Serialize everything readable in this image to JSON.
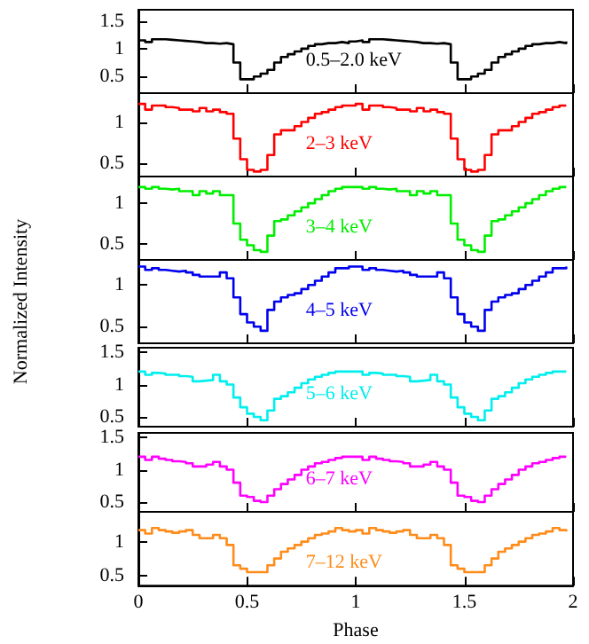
{
  "chart_data": [
    {
      "type": "step",
      "ylim": [
        0.2,
        1.7
      ],
      "yticks": [
        0.5,
        1,
        1.5
      ],
      "xlim": [
        0,
        2
      ],
      "xticks": [
        0,
        0.5,
        1,
        1.5,
        2
      ],
      "tick_labels": "y",
      "x": [
        0,
        0.03125,
        0.0625,
        0.09375,
        0.125,
        0.15625,
        0.1875,
        0.21875,
        0.25,
        0.28125,
        0.3125,
        0.34375,
        0.375,
        0.40625,
        0.4375,
        0.46875,
        0.5,
        0.53125,
        0.5625,
        0.59375,
        0.625,
        0.65625,
        0.6875,
        0.71875,
        0.75,
        0.78125,
        0.8125,
        0.84375,
        0.875,
        0.90625,
        0.9375,
        0.96875,
        1,
        1.03125,
        1.0625,
        1.09375,
        1.125,
        1.15625,
        1.1875,
        1.21875,
        1.25,
        1.28125,
        1.3125,
        1.34375,
        1.375,
        1.40625,
        1.4375,
        1.46875,
        1.5,
        1.53125,
        1.5625,
        1.59375,
        1.625,
        1.65625,
        1.6875,
        1.71875,
        1.75,
        1.78125,
        1.8125,
        1.84375,
        1.875,
        1.90625,
        1.9375,
        1.96875
      ],
      "series": [
        {
          "name": "0.5–2.0 keV",
          "color": "#000000",
          "values": [
            1.15,
            1.12,
            1.17,
            1.17,
            1.16,
            1.15,
            1.14,
            1.13,
            1.12,
            1.1,
            1.1,
            1.09,
            1.1,
            1.08,
            0.75,
            0.45,
            0.45,
            0.5,
            0.55,
            0.62,
            0.75,
            0.85,
            0.9,
            0.95,
            1.0,
            1.05,
            1.08,
            1.1,
            1.1,
            1.12,
            1.1,
            1.13,
            1.15,
            1.12,
            1.17,
            1.17,
            1.16,
            1.15,
            1.14,
            1.13,
            1.12,
            1.1,
            1.1,
            1.09,
            1.1,
            1.08,
            0.75,
            0.45,
            0.45,
            0.5,
            0.55,
            0.62,
            0.75,
            0.85,
            0.9,
            0.95,
            1.0,
            1.05,
            1.08,
            1.1,
            1.1,
            1.12,
            1.1,
            1.13
          ]
        }
      ]
    },
    {
      "type": "step",
      "ylim": [
        0.34,
        1.35
      ],
      "yticks": [
        0.5,
        1
      ],
      "xlim": [
        0,
        2
      ],
      "xticks": [
        0,
        0.5,
        1,
        1.5,
        2
      ],
      "tick_labels": "y",
      "x": [
        0,
        0.03125,
        0.0625,
        0.09375,
        0.125,
        0.15625,
        0.1875,
        0.21875,
        0.25,
        0.28125,
        0.3125,
        0.34375,
        0.375,
        0.40625,
        0.4375,
        0.46875,
        0.5,
        0.53125,
        0.5625,
        0.59375,
        0.625,
        0.65625,
        0.6875,
        0.71875,
        0.75,
        0.78125,
        0.8125,
        0.84375,
        0.875,
        0.90625,
        0.9375,
        0.96875,
        1,
        1.03125,
        1.0625,
        1.09375,
        1.125,
        1.15625,
        1.1875,
        1.21875,
        1.25,
        1.28125,
        1.3125,
        1.34375,
        1.375,
        1.40625,
        1.4375,
        1.46875,
        1.5,
        1.53125,
        1.5625,
        1.59375,
        1.625,
        1.65625,
        1.6875,
        1.71875,
        1.75,
        1.78125,
        1.8125,
        1.84375,
        1.875,
        1.90625,
        1.9375,
        1.96875
      ],
      "series": [
        {
          "name": "2–3 keV",
          "color": "#ff0000",
          "values": [
            1.22,
            1.15,
            1.2,
            1.2,
            1.18,
            1.17,
            1.15,
            1.15,
            1.13,
            1.17,
            1.13,
            1.15,
            1.12,
            1.1,
            0.8,
            0.55,
            0.42,
            0.4,
            0.42,
            0.6,
            0.85,
            0.9,
            0.9,
            0.95,
            1.0,
            1.05,
            1.1,
            1.12,
            1.15,
            1.18,
            1.2,
            1.2,
            1.22,
            1.15,
            1.2,
            1.2,
            1.18,
            1.17,
            1.15,
            1.15,
            1.13,
            1.17,
            1.13,
            1.15,
            1.12,
            1.1,
            0.8,
            0.55,
            0.42,
            0.4,
            0.42,
            0.6,
            0.85,
            0.9,
            0.9,
            0.95,
            1.0,
            1.05,
            1.1,
            1.12,
            1.15,
            1.18,
            1.2,
            1.2
          ]
        }
      ]
    },
    {
      "type": "step",
      "ylim": [
        0.3,
        1.33
      ],
      "yticks": [
        0.5,
        1
      ],
      "xlim": [
        0,
        2
      ],
      "xticks": [
        0,
        0.5,
        1,
        1.5,
        2
      ],
      "tick_labels": "y",
      "x": [
        0,
        0.03125,
        0.0625,
        0.09375,
        0.125,
        0.15625,
        0.1875,
        0.21875,
        0.25,
        0.28125,
        0.3125,
        0.34375,
        0.375,
        0.40625,
        0.4375,
        0.46875,
        0.5,
        0.53125,
        0.5625,
        0.59375,
        0.625,
        0.65625,
        0.6875,
        0.71875,
        0.75,
        0.78125,
        0.8125,
        0.84375,
        0.875,
        0.90625,
        0.9375,
        0.96875,
        1,
        1.03125,
        1.0625,
        1.09375,
        1.125,
        1.15625,
        1.1875,
        1.21875,
        1.25,
        1.28125,
        1.3125,
        1.34375,
        1.375,
        1.40625,
        1.4375,
        1.46875,
        1.5,
        1.53125,
        1.5625,
        1.59375,
        1.625,
        1.65625,
        1.6875,
        1.71875,
        1.75,
        1.78125,
        1.8125,
        1.84375,
        1.875,
        1.90625,
        1.9375,
        1.96875
      ],
      "series": [
        {
          "name": "3–4 keV",
          "color": "#00ee00",
          "values": [
            1.2,
            1.18,
            1.2,
            1.18,
            1.17,
            1.18,
            1.15,
            1.15,
            1.1,
            1.15,
            1.12,
            1.15,
            1.1,
            1.1,
            0.75,
            0.55,
            0.48,
            0.42,
            0.4,
            0.6,
            0.78,
            0.8,
            0.85,
            0.9,
            0.95,
            1.0,
            1.05,
            1.1,
            1.15,
            1.18,
            1.2,
            1.2,
            1.2,
            1.18,
            1.2,
            1.18,
            1.17,
            1.18,
            1.15,
            1.15,
            1.1,
            1.15,
            1.12,
            1.15,
            1.1,
            1.1,
            0.75,
            0.55,
            0.48,
            0.42,
            0.4,
            0.6,
            0.78,
            0.8,
            0.85,
            0.9,
            0.95,
            1.0,
            1.05,
            1.1,
            1.15,
            1.18,
            1.2,
            1.2
          ]
        }
      ]
    },
    {
      "type": "step",
      "ylim": [
        0.3,
        1.3
      ],
      "yticks": [
        0.5,
        1
      ],
      "xlim": [
        0,
        2
      ],
      "xticks": [
        0,
        0.5,
        1,
        1.5,
        2
      ],
      "tick_labels": "y",
      "ylabel": "Normalized Intensity",
      "x": [
        0,
        0.03125,
        0.0625,
        0.09375,
        0.125,
        0.15625,
        0.1875,
        0.21875,
        0.25,
        0.28125,
        0.3125,
        0.34375,
        0.375,
        0.40625,
        0.4375,
        0.46875,
        0.5,
        0.53125,
        0.5625,
        0.59375,
        0.625,
        0.65625,
        0.6875,
        0.71875,
        0.75,
        0.78125,
        0.8125,
        0.84375,
        0.875,
        0.90625,
        0.9375,
        0.96875,
        1,
        1.03125,
        1.0625,
        1.09375,
        1.125,
        1.15625,
        1.1875,
        1.21875,
        1.25,
        1.28125,
        1.3125,
        1.34375,
        1.375,
        1.40625,
        1.4375,
        1.46875,
        1.5,
        1.53125,
        1.5625,
        1.59375,
        1.625,
        1.65625,
        1.6875,
        1.71875,
        1.75,
        1.78125,
        1.8125,
        1.84375,
        1.875,
        1.90625,
        1.9375,
        1.96875
      ],
      "series": [
        {
          "name": "4–5 keV",
          "color": "#0000ee",
          "values": [
            1.22,
            1.18,
            1.2,
            1.18,
            1.17,
            1.16,
            1.17,
            1.15,
            1.12,
            1.1,
            1.1,
            1.1,
            1.15,
            1.08,
            0.85,
            0.65,
            0.55,
            0.5,
            0.45,
            0.7,
            0.8,
            0.85,
            0.88,
            0.9,
            0.95,
            1.0,
            1.05,
            1.1,
            1.15,
            1.2,
            1.2,
            1.22,
            1.22,
            1.18,
            1.2,
            1.18,
            1.17,
            1.16,
            1.17,
            1.15,
            1.12,
            1.1,
            1.1,
            1.1,
            1.15,
            1.08,
            0.85,
            0.65,
            0.55,
            0.5,
            0.45,
            0.7,
            0.8,
            0.85,
            0.88,
            0.9,
            0.95,
            1.0,
            1.05,
            1.1,
            1.15,
            1.2,
            1.2,
            1.22
          ]
        }
      ]
    },
    {
      "type": "step",
      "ylim": [
        0.35,
        1.57
      ],
      "yticks": [
        0.5,
        1,
        1.5
      ],
      "xlim": [
        0,
        2
      ],
      "xticks": [
        0,
        0.5,
        1,
        1.5,
        2
      ],
      "tick_labels": "y",
      "x": [
        0,
        0.03125,
        0.0625,
        0.09375,
        0.125,
        0.15625,
        0.1875,
        0.21875,
        0.25,
        0.28125,
        0.3125,
        0.34375,
        0.375,
        0.40625,
        0.4375,
        0.46875,
        0.5,
        0.53125,
        0.5625,
        0.59375,
        0.625,
        0.65625,
        0.6875,
        0.71875,
        0.75,
        0.78125,
        0.8125,
        0.84375,
        0.875,
        0.90625,
        0.9375,
        0.96875,
        1,
        1.03125,
        1.0625,
        1.09375,
        1.125,
        1.15625,
        1.1875,
        1.21875,
        1.25,
        1.28125,
        1.3125,
        1.34375,
        1.375,
        1.40625,
        1.4375,
        1.46875,
        1.5,
        1.53125,
        1.5625,
        1.59375,
        1.625,
        1.65625,
        1.6875,
        1.71875,
        1.75,
        1.78125,
        1.8125,
        1.84375,
        1.875,
        1.90625,
        1.9375,
        1.96875
      ],
      "series": [
        {
          "name": "5–6 keV",
          "color": "#00eeee",
          "values": [
            1.2,
            1.15,
            1.18,
            1.17,
            1.15,
            1.15,
            1.13,
            1.12,
            1.05,
            1.06,
            1.07,
            1.15,
            1.05,
            1.0,
            0.8,
            0.65,
            0.55,
            0.5,
            0.45,
            0.6,
            0.78,
            0.82,
            0.88,
            0.95,
            1.02,
            1.08,
            1.12,
            1.15,
            1.18,
            1.2,
            1.2,
            1.2,
            1.2,
            1.15,
            1.18,
            1.17,
            1.15,
            1.15,
            1.13,
            1.12,
            1.05,
            1.06,
            1.07,
            1.15,
            1.05,
            1.0,
            0.8,
            0.65,
            0.55,
            0.5,
            0.45,
            0.6,
            0.78,
            0.82,
            0.88,
            0.95,
            1.02,
            1.08,
            1.12,
            1.15,
            1.18,
            1.2,
            1.2,
            1.2
          ]
        }
      ]
    },
    {
      "type": "step",
      "ylim": [
        0.35,
        1.57
      ],
      "yticks": [
        0.5,
        1,
        1.5
      ],
      "xlim": [
        0,
        2
      ],
      "xticks": [
        0,
        0.5,
        1,
        1.5,
        2
      ],
      "tick_labels": "y",
      "x": [
        0,
        0.03125,
        0.0625,
        0.09375,
        0.125,
        0.15625,
        0.1875,
        0.21875,
        0.25,
        0.28125,
        0.3125,
        0.34375,
        0.375,
        0.40625,
        0.4375,
        0.46875,
        0.5,
        0.53125,
        0.5625,
        0.59375,
        0.625,
        0.65625,
        0.6875,
        0.71875,
        0.75,
        0.78125,
        0.8125,
        0.84375,
        0.875,
        0.90625,
        0.9375,
        0.96875,
        1,
        1.03125,
        1.0625,
        1.09375,
        1.125,
        1.15625,
        1.1875,
        1.21875,
        1.25,
        1.28125,
        1.3125,
        1.34375,
        1.375,
        1.40625,
        1.4375,
        1.46875,
        1.5,
        1.53125,
        1.5625,
        1.59375,
        1.625,
        1.65625,
        1.6875,
        1.71875,
        1.75,
        1.78125,
        1.8125,
        1.84375,
        1.875,
        1.90625,
        1.9375,
        1.96875
      ],
      "series": [
        {
          "name": "6–7 keV",
          "color": "#ff00ff",
          "values": [
            1.2,
            1.15,
            1.2,
            1.17,
            1.15,
            1.13,
            1.12,
            1.1,
            1.05,
            1.05,
            1.08,
            1.12,
            1.05,
            1.0,
            0.8,
            0.6,
            0.58,
            0.52,
            0.5,
            0.6,
            0.7,
            0.78,
            0.85,
            0.92,
            1.0,
            1.05,
            1.1,
            1.12,
            1.15,
            1.18,
            1.2,
            1.2,
            1.2,
            1.15,
            1.2,
            1.17,
            1.15,
            1.13,
            1.12,
            1.1,
            1.05,
            1.05,
            1.08,
            1.12,
            1.05,
            1.0,
            0.8,
            0.6,
            0.58,
            0.52,
            0.5,
            0.6,
            0.7,
            0.78,
            0.85,
            0.92,
            1.0,
            1.05,
            1.1,
            1.12,
            1.15,
            1.18,
            1.2,
            1.2
          ]
        }
      ]
    },
    {
      "type": "step",
      "ylim": [
        0.35,
        1.44
      ],
      "yticks": [
        0.5,
        1
      ],
      "xlim": [
        0,
        2
      ],
      "xticks": [
        0,
        0.5,
        1,
        1.5,
        2
      ],
      "xlabel": "Phase",
      "x": [
        0,
        0.03125,
        0.0625,
        0.09375,
        0.125,
        0.15625,
        0.1875,
        0.21875,
        0.25,
        0.28125,
        0.3125,
        0.34375,
        0.375,
        0.40625,
        0.4375,
        0.46875,
        0.5,
        0.53125,
        0.5625,
        0.59375,
        0.625,
        0.65625,
        0.6875,
        0.71875,
        0.75,
        0.78125,
        0.8125,
        0.84375,
        0.875,
        0.90625,
        0.9375,
        0.96875,
        1,
        1.03125,
        1.0625,
        1.09375,
        1.125,
        1.15625,
        1.1875,
        1.21875,
        1.25,
        1.28125,
        1.3125,
        1.34375,
        1.375,
        1.40625,
        1.4375,
        1.46875,
        1.5,
        1.53125,
        1.5625,
        1.59375,
        1.625,
        1.65625,
        1.6875,
        1.71875,
        1.75,
        1.78125,
        1.8125,
        1.84375,
        1.875,
        1.90625,
        1.9375,
        1.96875
      ],
      "series": [
        {
          "name": "7–12 keV",
          "color": "#ff8c1a",
          "values": [
            1.17,
            1.12,
            1.2,
            1.17,
            1.15,
            1.13,
            1.15,
            1.17,
            1.1,
            1.05,
            1.05,
            1.1,
            1.05,
            0.95,
            0.65,
            0.6,
            0.55,
            0.55,
            0.55,
            0.65,
            0.75,
            0.85,
            0.9,
            0.95,
            1.0,
            1.05,
            1.1,
            1.12,
            1.15,
            1.2,
            1.17,
            1.15,
            1.17,
            1.12,
            1.2,
            1.17,
            1.15,
            1.13,
            1.15,
            1.17,
            1.1,
            1.05,
            1.05,
            1.1,
            1.05,
            0.95,
            0.65,
            0.6,
            0.55,
            0.55,
            0.55,
            0.65,
            0.75,
            0.85,
            0.9,
            0.95,
            1.0,
            1.05,
            1.1,
            1.12,
            1.15,
            1.2,
            1.17,
            1.15
          ]
        }
      ]
    }
  ]
}
